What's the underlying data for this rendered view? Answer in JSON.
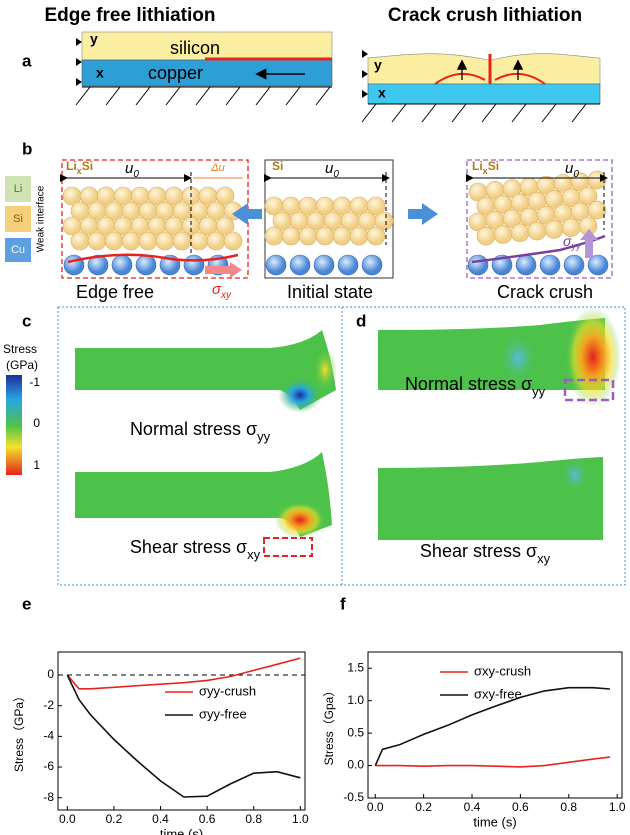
{
  "figure": {
    "headers": [
      "Edge free lithiation",
      "Crack crush lithiation"
    ],
    "panel_labels": [
      "a",
      "b",
      "c",
      "d",
      "e",
      "f"
    ],
    "a": {
      "left": {
        "y": "y",
        "top_layer": "silicon",
        "x": "x",
        "bottom_layer": "copper"
      },
      "right": {
        "y": "y",
        "x": "x"
      }
    },
    "b": {
      "legend": [
        "Li",
        "Si",
        "Cu"
      ],
      "interface": "Weak interface",
      "edge": {
        "phase": {
          "base": "Li",
          "sub": "x",
          "tail": "Si"
        },
        "length": {
          "base": "u",
          "sub": "0"
        },
        "delta": "Δu",
        "stress": {
          "base": "σ",
          "sub": "xy"
        },
        "caption": "Edge free"
      },
      "initial": {
        "phase": "Si",
        "length": {
          "base": "u",
          "sub": "0"
        },
        "caption": "Initial state"
      },
      "crush": {
        "phase": {
          "base": "Li",
          "sub": "x",
          "tail": "Si"
        },
        "length": {
          "base": "u",
          "sub": "0"
        },
        "stress": {
          "base": "σ",
          "sub": "yy"
        },
        "caption": "Crack crush"
      }
    },
    "cd": {
      "colorbar_title": [
        "Stress",
        "(GPa)"
      ],
      "colorbar_ticks": [
        "-1",
        "0",
        "1"
      ],
      "c": [
        {
          "base": "Normal stress σ",
          "sub": "yy"
        },
        {
          "base": "Shear stress σ",
          "sub": "xy"
        }
      ],
      "d": [
        {
          "base": "Normal stress σ",
          "sub": "yy"
        },
        {
          "base": "Shear stress σ",
          "sub": "xy"
        }
      ]
    }
  },
  "chart_data": [
    {
      "type": "line",
      "x_label": "time (s)",
      "y_label": "Stress（GPa）",
      "x": [
        0,
        0.05,
        0.1,
        0.2,
        0.3,
        0.4,
        0.5,
        0.6,
        0.7,
        0.8,
        0.9,
        1.0
      ],
      "series": [
        {
          "name": "σyy-crush",
          "color": "#e8231f",
          "values": [
            0,
            -0.9,
            -0.9,
            -0.8,
            -0.7,
            -0.6,
            -0.5,
            -0.35,
            -0.1,
            0.3,
            0.7,
            1.1
          ]
        },
        {
          "name": "σyy-free",
          "color": "#111111",
          "values": [
            0,
            -1.6,
            -2.6,
            -4.2,
            -5.6,
            -6.9,
            -7.95,
            -7.9,
            -7.1,
            -6.4,
            -6.3,
            -6.7
          ]
        }
      ],
      "hline": 0,
      "xlim": [
        -0.04,
        1.02
      ],
      "xticks": [
        {
          "value": 0,
          "label": "0.0"
        },
        0.2,
        0.4,
        0.6,
        0.8,
        {
          "value": 1,
          "label": "1.0"
        }
      ],
      "ylim": [
        -8.8,
        1.5
      ],
      "yticks": [
        0,
        -2,
        -4,
        -6,
        -8
      ]
    },
    {
      "type": "line",
      "x_label": "time (s)",
      "y_label": "Stress（Gpa）",
      "x": [
        0,
        0.03,
        0.1,
        0.2,
        0.3,
        0.4,
        0.5,
        0.6,
        0.7,
        0.8,
        0.9,
        0.97
      ],
      "series": [
        {
          "name": "σxy-crush",
          "color": "#e8231f",
          "values": [
            0,
            0,
            0,
            -0.01,
            0,
            0,
            -0.01,
            -0.02,
            0,
            0.05,
            0.1,
            0.13
          ]
        },
        {
          "name": "σxy-free",
          "color": "#111111",
          "values": [
            0,
            0.25,
            0.32,
            0.48,
            0.62,
            0.78,
            0.92,
            1.05,
            1.15,
            1.2,
            1.2,
            1.18
          ]
        }
      ],
      "xlim": [
        -0.03,
        1.02
      ],
      "xticks": [
        {
          "value": 0,
          "label": "0.0"
        },
        0.2,
        0.4,
        0.6,
        0.8,
        {
          "value": 1,
          "label": "1.0"
        }
      ],
      "ylim": [
        -0.5,
        1.75
      ],
      "yticks": [
        -0.5,
        {
          "value": 0,
          "label": "0.0"
        },
        0.5,
        {
          "value": 1,
          "label": "1.0"
        },
        1.5
      ]
    }
  ]
}
